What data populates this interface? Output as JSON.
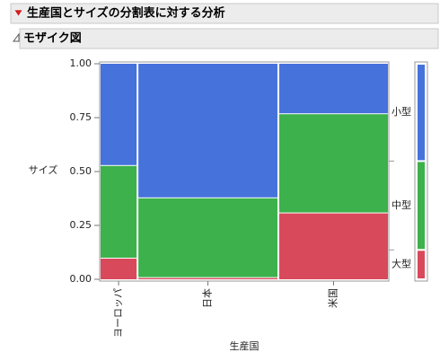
{
  "report_title": "生産国とサイズの分割表に対する分析",
  "section_title": "モザイク図",
  "chart_data": {
    "type": "mosaic",
    "y_title": "サイズ",
    "x_title": "生産国",
    "categories": [
      "ヨーロッパ",
      "日本",
      "米国"
    ],
    "category_shares": [
      0.127,
      0.49,
      0.383
    ],
    "series": [
      {
        "name": "大型",
        "color": "#d84a5b",
        "values": [
          0.1,
          0.01,
          0.31
        ]
      },
      {
        "name": "中型",
        "color": "#3db14b",
        "values": [
          0.43,
          0.37,
          0.46
        ]
      },
      {
        "name": "小型",
        "color": "#4672dc",
        "values": [
          0.47,
          0.62,
          0.23
        ]
      }
    ],
    "ylim": [
      0,
      1
    ],
    "yticks": [
      {
        "value": 0,
        "label": "0.00"
      },
      {
        "value": 0.25,
        "label": "0.25"
      },
      {
        "value": 0.5,
        "label": "0.50"
      },
      {
        "value": 0.75,
        "label": "0.75"
      },
      {
        "value": 1,
        "label": "1.00"
      }
    ]
  }
}
